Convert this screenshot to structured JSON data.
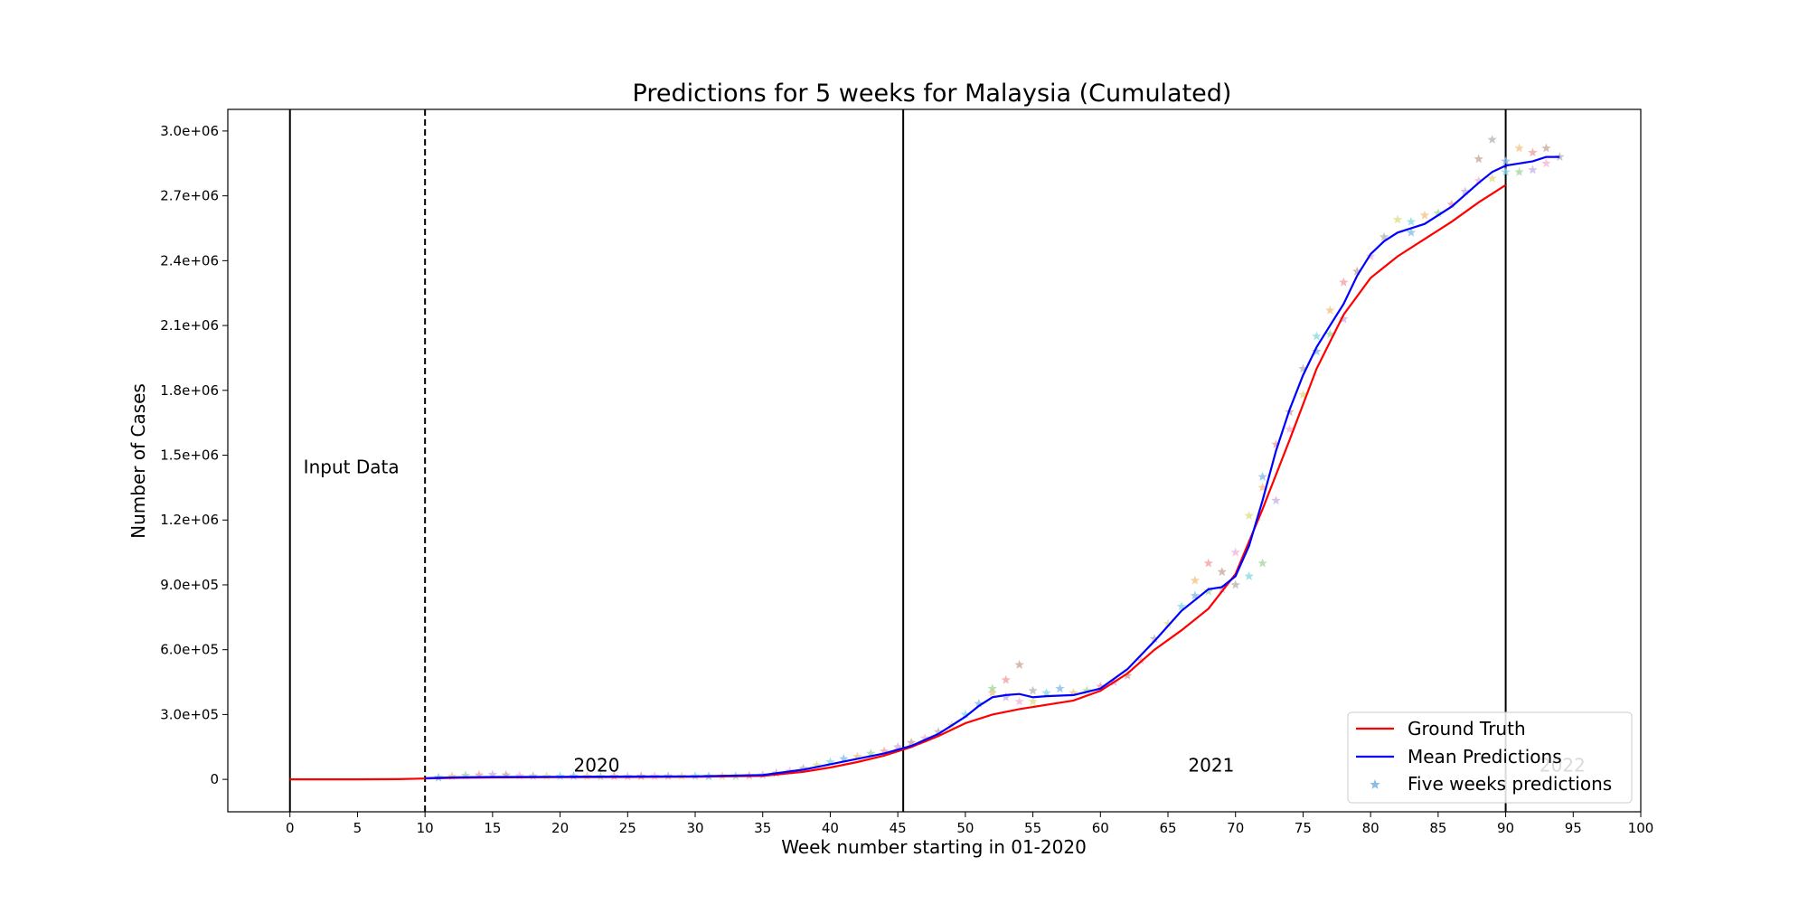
{
  "chart_data": {
    "type": "line",
    "title": "Predictions for 5 weeks for Malaysia (Cumulated)",
    "xlabel": "Week number starting in 01-2020",
    "ylabel": "Number of Cases",
    "xlim": [
      -4.6,
      100
    ],
    "ylim": [
      -150000,
      3100000
    ],
    "x_ticks": [
      0,
      5,
      10,
      15,
      20,
      25,
      30,
      35,
      40,
      45,
      50,
      55,
      60,
      65,
      70,
      75,
      80,
      85,
      90,
      95,
      100
    ],
    "y_ticks": [
      0,
      300000,
      600000,
      900000,
      1200000,
      1500000,
      1800000,
      2100000,
      2400000,
      2700000,
      3000000
    ],
    "y_tick_labels": [
      "0",
      "3.0e+05",
      "6.0e+05",
      "9.0e+05",
      "1.2e+06",
      "1.5e+06",
      "1.8e+06",
      "2.1e+06",
      "2.4e+06",
      "2.7e+06",
      "3.0e+06"
    ],
    "grid": false,
    "legend_position": "lower-right",
    "colors": {
      "ground_truth": "#ff0000",
      "mean_predictions": "#0000ff",
      "five_weeks_predictions": "#87bde6",
      "star_palette": [
        "#87bde6",
        "#f5c48a",
        "#a6d9a0",
        "#f2a2a2",
        "#cdb3e6",
        "#c9a99e",
        "#f4b6dc",
        "#b8b8b8",
        "#e0e08a",
        "#8ad9e6"
      ]
    },
    "vlines": [
      {
        "x": 0,
        "style": "solid"
      },
      {
        "x": 10,
        "style": "dashed"
      },
      {
        "x": 45.4,
        "style": "solid"
      },
      {
        "x": 90,
        "style": "solid"
      }
    ],
    "annotations": [
      {
        "text": "Input Data",
        "x": 1,
        "y": 1400000
      },
      {
        "text": "2020",
        "x": 21,
        "y": 20000
      },
      {
        "text": "2021",
        "x": 66.5,
        "y": 20000
      },
      {
        "text": "2022",
        "x": 92.5,
        "y": 20000
      }
    ],
    "series": [
      {
        "name": "Ground Truth",
        "x": [
          0,
          5,
          8,
          10,
          12,
          15,
          20,
          25,
          30,
          35,
          38,
          40,
          42,
          44,
          46,
          48,
          50,
          52,
          54,
          56,
          58,
          60,
          62,
          64,
          66,
          68,
          70,
          72,
          74,
          76,
          78,
          80,
          82,
          84,
          86,
          88,
          90
        ],
        "y": [
          0,
          0,
          1000,
          4000,
          7000,
          9000,
          10000,
          11000,
          12000,
          16000,
          35000,
          55000,
          80000,
          110000,
          150000,
          200000,
          260000,
          300000,
          325000,
          345000,
          365000,
          410000,
          490000,
          600000,
          690000,
          790000,
          950000,
          1250000,
          1570000,
          1900000,
          2150000,
          2320000,
          2420000,
          2500000,
          2580000,
          2670000,
          2750000
        ]
      },
      {
        "name": "Mean Predictions",
        "x": [
          10,
          12,
          15,
          20,
          25,
          30,
          35,
          38,
          40,
          42,
          44,
          46,
          48,
          50,
          51,
          52,
          53,
          54,
          55,
          56,
          58,
          60,
          62,
          64,
          66,
          68,
          69,
          70,
          71,
          72,
          73,
          74,
          75,
          76,
          77,
          78,
          79,
          80,
          81,
          82,
          84,
          86,
          88,
          89,
          90,
          92,
          93,
          94
        ],
        "y": [
          5000,
          9000,
          11000,
          12000,
          13000,
          14000,
          20000,
          45000,
          70000,
          95000,
          120000,
          155000,
          210000,
          290000,
          340000,
          380000,
          390000,
          395000,
          380000,
          385000,
          390000,
          420000,
          510000,
          640000,
          780000,
          880000,
          890000,
          940000,
          1080000,
          1290000,
          1520000,
          1710000,
          1870000,
          2000000,
          2100000,
          2200000,
          2330000,
          2430000,
          2490000,
          2530000,
          2570000,
          2650000,
          2760000,
          2810000,
          2840000,
          2860000,
          2880000,
          2880000
        ]
      },
      {
        "name": "Five weeks predictions",
        "x": [
          11,
          12,
          13,
          14,
          15,
          16,
          17,
          18,
          19,
          20,
          21,
          22,
          23,
          24,
          25,
          26,
          27,
          28,
          29,
          30,
          31,
          32,
          33,
          34,
          35,
          36,
          37,
          38,
          39,
          40,
          41,
          42,
          43,
          44,
          45,
          46,
          47,
          48,
          49,
          50,
          51,
          52,
          52,
          53,
          53,
          54,
          54,
          55,
          55,
          56,
          57,
          58,
          59,
          60,
          61,
          62,
          63,
          64,
          65,
          66,
          67,
          67,
          68,
          68,
          69,
          69,
          70,
          70,
          71,
          71,
          72,
          72,
          72,
          73,
          73,
          74,
          74,
          75,
          75,
          76,
          76,
          77,
          77,
          78,
          78,
          79,
          80,
          81,
          82,
          83,
          83,
          84,
          85,
          86,
          87,
          88,
          88,
          89,
          89,
          90,
          90,
          91,
          91,
          92,
          92,
          93,
          93,
          94
        ],
        "y": [
          8000,
          14000,
          18000,
          20000,
          22000,
          20000,
          16000,
          15000,
          14000,
          14000,
          15000,
          14000,
          13000,
          14000,
          13000,
          14000,
          14000,
          15000,
          15000,
          15000,
          14000,
          15000,
          15000,
          17000,
          20000,
          28000,
          38000,
          50000,
          65000,
          80000,
          95000,
          105000,
          120000,
          130000,
          150000,
          170000,
          190000,
          220000,
          250000,
          300000,
          350000,
          400000,
          420000,
          460000,
          380000,
          530000,
          360000,
          410000,
          360000,
          400000,
          420000,
          400000,
          410000,
          430000,
          450000,
          480000,
          550000,
          650000,
          720000,
          800000,
          850000,
          920000,
          870000,
          1000000,
          880000,
          960000,
          1050000,
          900000,
          1220000,
          940000,
          1400000,
          1350000,
          1000000,
          1550000,
          1290000,
          1700000,
          1620000,
          1900000,
          1780000,
          2050000,
          1980000,
          2170000,
          2060000,
          2300000,
          2130000,
          2350000,
          2420000,
          2510000,
          2590000,
          2580000,
          2530000,
          2610000,
          2620000,
          2660000,
          2720000,
          2870000,
          2770000,
          2960000,
          2780000,
          2810000,
          2860000,
          2920000,
          2810000,
          2900000,
          2820000,
          2920000,
          2850000,
          2880000
        ]
      }
    ]
  },
  "legend": {
    "items": [
      {
        "label": "Ground Truth"
      },
      {
        "label": "Mean Predictions"
      },
      {
        "label": "Five weeks predictions"
      }
    ]
  }
}
